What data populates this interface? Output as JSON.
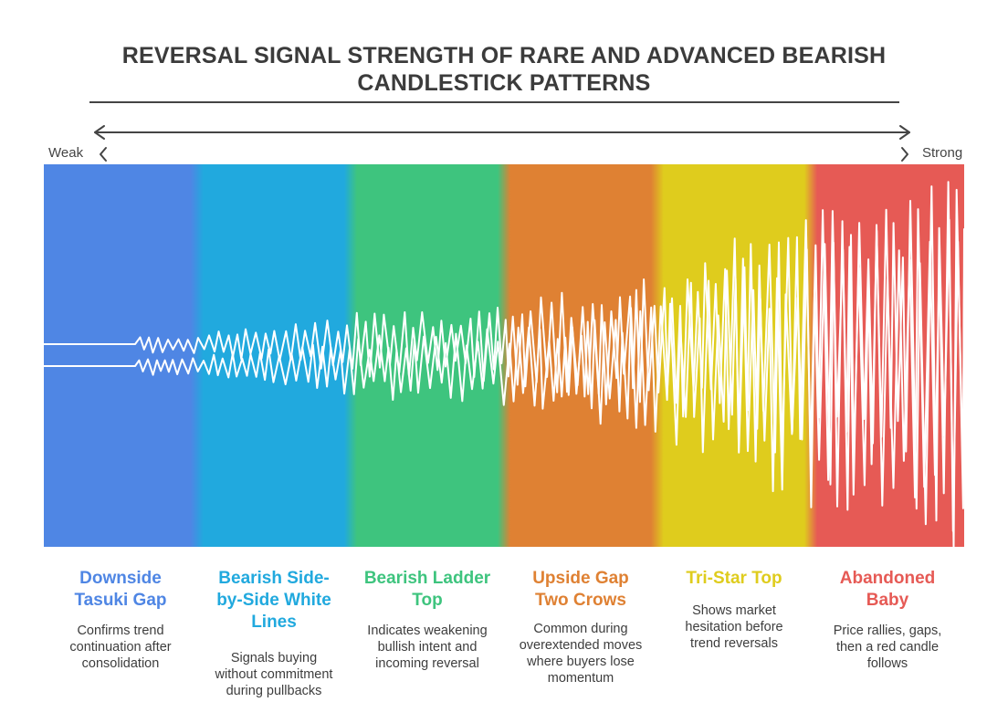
{
  "title_line1": "REVERSAL SIGNAL STRENGTH OF RARE AND ADVANCED BEARISH",
  "title_line2": "CANDLESTICK PATTERNS",
  "scale": {
    "weak_label": "Weak",
    "strong_label": "Strong"
  },
  "patterns": [
    {
      "title": "Downside Tasuki Gap",
      "desc": "Confirms trend continuation after consolidation",
      "color": "#4f86e4"
    },
    {
      "title": "Bearish Side-by-Side White Lines",
      "desc": "Signals buying without commitment during pullbacks",
      "color": "#21a9de"
    },
    {
      "title": "Bearish Ladder Top",
      "desc": "Indicates weakening bullish intent and incoming reversal",
      "color": "#3ec47e"
    },
    {
      "title": "Upside Gap Two Crows",
      "desc": "Common during overextended moves where buyers lose momentum",
      "color": "#df8133"
    },
    {
      "title": "Tri-Star Top",
      "desc": "Shows market hesitation before trend reversals",
      "color": "#dfcc1d"
    },
    {
      "title": "Abandoned Baby",
      "desc": "Price rallies, gaps, then a red candle follows",
      "color": "#e65a55"
    }
  ]
}
